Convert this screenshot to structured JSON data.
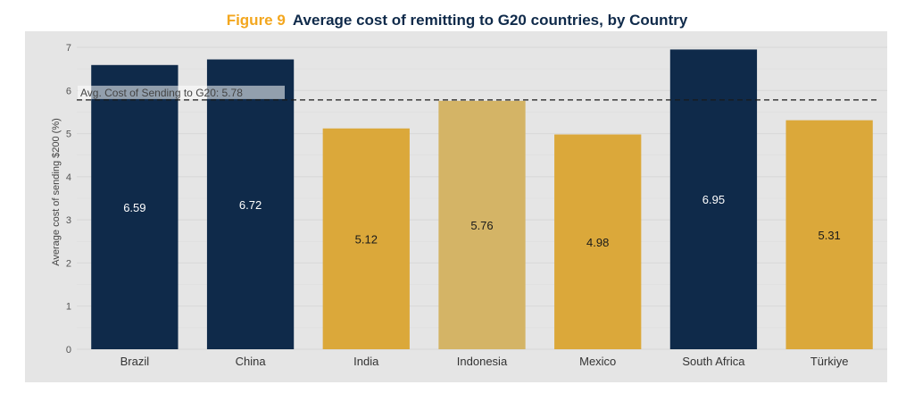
{
  "title": {
    "figure_label": "Figure 9",
    "text": "Average cost of remitting to G20 countries, by Country"
  },
  "colors": {
    "panel": "#e5e5e5",
    "navy": "#0f2a4a",
    "gold": "#dba83a",
    "light_gold": "#d4b466",
    "title_accent": "#f3a71f"
  },
  "chart_data": {
    "type": "bar",
    "categories": [
      "Brazil",
      "China",
      "India",
      "Indonesia",
      "Mexico",
      "South Africa",
      "Türkiye"
    ],
    "values": [
      6.59,
      6.72,
      5.12,
      5.76,
      4.98,
      6.95,
      5.31
    ],
    "value_labels": [
      "6.59",
      "6.72",
      "5.12",
      "5.76",
      "4.98",
      "6.95",
      "5.31"
    ],
    "bar_color_keys": [
      "navy",
      "navy",
      "gold",
      "light_gold",
      "gold",
      "navy",
      "gold"
    ],
    "ylabel": "Average cost of sending $200 (%)",
    "xlabel": "",
    "ylim": [
      0,
      7
    ],
    "yticks": [
      0,
      1,
      2,
      3,
      4,
      5,
      6,
      7
    ],
    "grid": true,
    "reference_line": {
      "value": 5.78,
      "label": "Avg. Cost of Sending to G20: 5.78",
      "style": "dashed"
    }
  }
}
